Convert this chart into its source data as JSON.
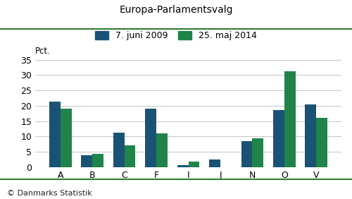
{
  "title": "Europa-Parlamentsvalg",
  "categories": [
    "A",
    "B",
    "C",
    "F",
    "I",
    "J",
    "N",
    "O",
    "V"
  ],
  "series": [
    {
      "label": "7. juni 2009",
      "color": "#1a5276",
      "values": [
        21.3,
        3.8,
        11.3,
        19.0,
        0.7,
        2.4,
        8.4,
        18.5,
        20.4
      ]
    },
    {
      "label": "25. maj 2014",
      "color": "#1e8449",
      "values": [
        19.1,
        4.3,
        7.0,
        10.9,
        1.9,
        0.0,
        9.4,
        31.2,
        16.0
      ]
    }
  ],
  "ylabel": "Pct.",
  "ylim": [
    0,
    35
  ],
  "yticks": [
    0,
    5,
    10,
    15,
    20,
    25,
    30,
    35
  ],
  "footer": "© Danmarks Statistik",
  "background_color": "#ffffff",
  "grid_color": "#bbbbbb",
  "top_line_color": "#2e7d32",
  "bar_width": 0.35,
  "title_fontsize": 10,
  "legend_fontsize": 9,
  "tick_fontsize": 9,
  "footer_fontsize": 8
}
